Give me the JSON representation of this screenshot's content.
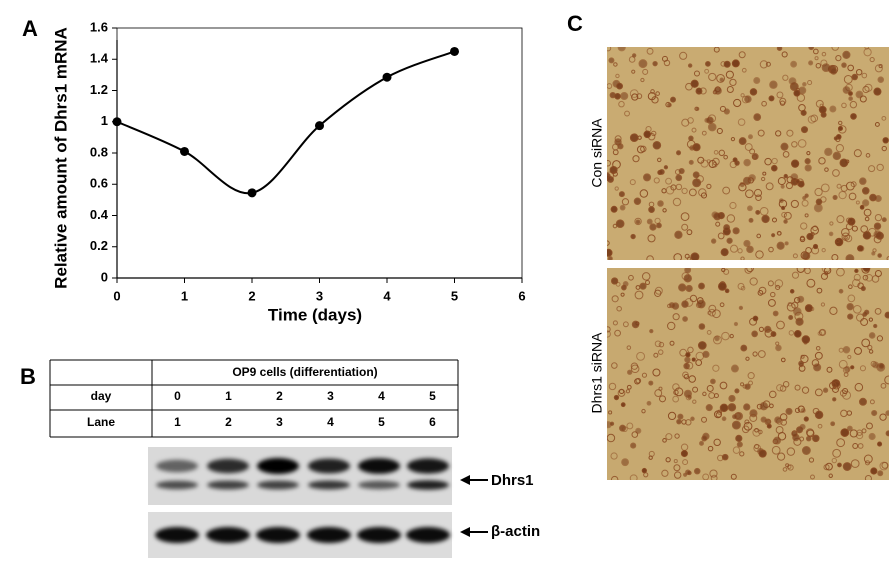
{
  "chart_data": {
    "type": "line",
    "panel_label": "A",
    "xlabel": "Time (days)",
    "ylabel": "Relative amount of Dhrs1 mRNA",
    "x": [
      0,
      1,
      2,
      3,
      4,
      5
    ],
    "values": [
      1,
      0.81,
      0.545,
      0.975,
      1.285,
      1.45
    ],
    "color": "#000000",
    "xlim": [
      0,
      6
    ],
    "xticks": [
      0,
      1,
      2,
      3,
      4,
      5,
      6
    ],
    "ylim": [
      0,
      1.6
    ],
    "yticks": [
      0,
      0.2,
      0.4,
      0.6,
      0.8,
      1,
      1.2,
      1.4,
      1.6
    ]
  },
  "panel_b": {
    "label": "B",
    "table": {
      "header": "OP9 cells (differentiation)",
      "rows": [
        [
          "day",
          0,
          1,
          2,
          3,
          4,
          5
        ],
        [
          "Lane",
          1,
          2,
          3,
          4,
          5,
          6
        ]
      ]
    },
    "blots": [
      "Dhrs1",
      "β-actin"
    ]
  },
  "panel_c": {
    "label": "C",
    "images": [
      "Con siRNA",
      "Dhrs1 siRNA"
    ]
  }
}
